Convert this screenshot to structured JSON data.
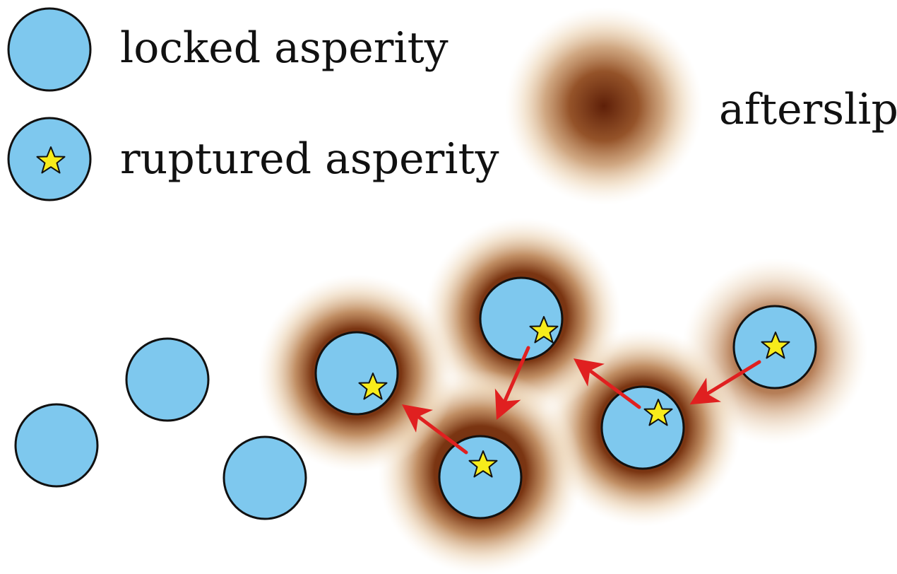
{
  "legend": {
    "locked_label": "locked asperity",
    "ruptured_label": "ruptured asperity",
    "afterslip_label": "afterslip"
  },
  "colors": {
    "asperity_fill": "#7ec8ee",
    "asperity_stroke": "#111111",
    "star_fill": "#f7ec1b",
    "afterslip_core": "#6e2a0c",
    "afterslip_mid": "#b06a35",
    "afterslip_edge": "#f5e3c8",
    "arrow": "#e02020"
  },
  "icons": {
    "asperity": "circle",
    "rupture": "star-icon",
    "propagation": "arrow-icon"
  }
}
